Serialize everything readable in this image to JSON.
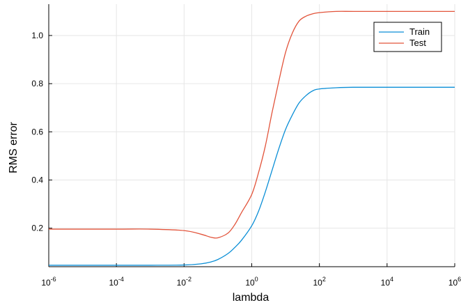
{
  "chart_data": {
    "type": "line",
    "title": "",
    "xlabel": "lambda",
    "ylabel": "RMS error",
    "xscale": "log",
    "xlim": [
      1e-06,
      1000000
    ],
    "ylim": [
      0.04,
      1.13
    ],
    "xticks": [
      {
        "value": 1e-06,
        "base": "10",
        "exp": "-6"
      },
      {
        "value": 0.0001,
        "base": "10",
        "exp": "-4"
      },
      {
        "value": 0.01,
        "base": "10",
        "exp": "-2"
      },
      {
        "value": 1,
        "base": "10",
        "exp": "0"
      },
      {
        "value": 100,
        "base": "10",
        "exp": "2"
      },
      {
        "value": 10000,
        "base": "10",
        "exp": "4"
      },
      {
        "value": 1000000,
        "base": "10",
        "exp": "6"
      }
    ],
    "yticks": [
      {
        "value": 0.2,
        "label": "0.2"
      },
      {
        "value": 0.4,
        "label": "0.4"
      },
      {
        "value": 0.6,
        "label": "0.6"
      },
      {
        "value": 0.8,
        "label": "0.8"
      },
      {
        "value": 1.0,
        "label": "1.0"
      }
    ],
    "grid": true,
    "legend": "top-right",
    "x": [
      1e-06,
      0.0001,
      0.001,
      0.01,
      0.0316,
      0.0631,
      0.1,
      0.2,
      0.316,
      0.5,
      1,
      1.585,
      2.512,
      3.981,
      6.31,
      10,
      15.85,
      25.12,
      39.81,
      63.1,
      100,
      316.2,
      1000,
      10000,
      100000,
      1000000
    ],
    "series": [
      {
        "name": "Train",
        "color": "#0a8ed6",
        "values": [
          0.046,
          0.046,
          0.046,
          0.047,
          0.052,
          0.06,
          0.07,
          0.095,
          0.12,
          0.15,
          0.21,
          0.27,
          0.35,
          0.44,
          0.53,
          0.61,
          0.67,
          0.72,
          0.75,
          0.77,
          0.778,
          0.783,
          0.785,
          0.785,
          0.785,
          0.785
        ]
      },
      {
        "name": "Test",
        "color": "#e2533a",
        "values": [
          0.196,
          0.196,
          0.196,
          0.19,
          0.175,
          0.162,
          0.16,
          0.18,
          0.215,
          0.265,
          0.34,
          0.43,
          0.54,
          0.68,
          0.81,
          0.93,
          1.01,
          1.06,
          1.08,
          1.09,
          1.095,
          1.1,
          1.1,
          1.1,
          1.1,
          1.1
        ]
      }
    ]
  }
}
